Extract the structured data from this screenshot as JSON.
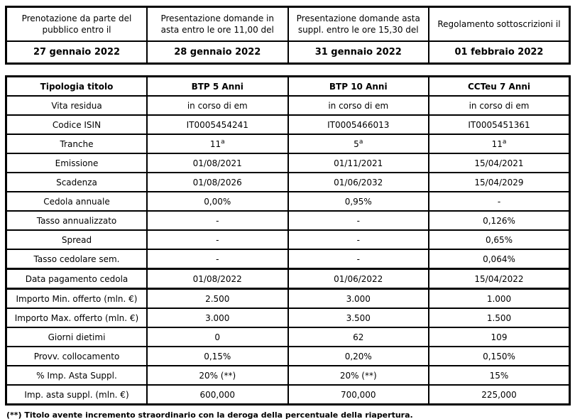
{
  "schedule_table": {
    "headers": [
      "Prenotazione da parte del pubblico entro il",
      "Presentazione domande in asta entro le ore 11,00 del",
      "Presentazione domande asta suppl. entro le ore 15,30 del",
      "Regolamento sottoscrizioni il"
    ],
    "dates": [
      "27 gennaio 2022",
      "28 gennaio 2022",
      "31 gennaio 2022",
      "01 febbraio 2022"
    ]
  },
  "securities_table": {
    "header_label": "Tipologia titolo",
    "columns": [
      "BTP 5 Anni",
      "BTP 10 Anni",
      "CCTeu 7 Anni"
    ],
    "rows": [
      {
        "label": "Vita residua",
        "values": [
          "in corso di em",
          "in corso di em",
          "in corso di em"
        ]
      },
      {
        "label": "Codice ISIN",
        "values": [
          "IT0005454241",
          "IT0005466013",
          "IT0005451361"
        ]
      },
      {
        "label": "Tranche",
        "values": [
          "11ª",
          "5ª",
          "11ª"
        ]
      },
      {
        "label": "Emissione",
        "values": [
          "01/08/2021",
          "01/11/2021",
          "15/04/2021"
        ]
      },
      {
        "label": "Scadenza",
        "values": [
          "01/08/2026",
          "01/06/2032",
          "15/04/2029"
        ]
      },
      {
        "label": "Cedola annuale",
        "values": [
          "0,00%",
          "0,95%",
          "-"
        ]
      },
      {
        "label": "Tasso annualizzato",
        "values": [
          "-",
          "-",
          "0,126%"
        ]
      },
      {
        "label": "Spread",
        "values": [
          "-",
          "-",
          "0,65%"
        ]
      },
      {
        "label": "Tasso cedolare sem.",
        "values": [
          "-",
          "-",
          "0,064%"
        ]
      },
      {
        "label": "Data pagamento cedola",
        "values": [
          "01/08/2022",
          "01/06/2022",
          "15/04/2022"
        ],
        "group_start": true
      },
      {
        "label": "Importo Min. offerto (mln. €)",
        "values": [
          "2.500",
          "3.000",
          "1.000"
        ],
        "group_start": true
      },
      {
        "label": "Importo Max. offerto (mln. €)",
        "values": [
          "3.000",
          "3.500",
          "1.500"
        ]
      },
      {
        "label": "Giorni dietimi",
        "values": [
          "0",
          "62",
          "109"
        ]
      },
      {
        "label": "Provv. collocamento",
        "values": [
          "0,15%",
          "0,20%",
          "0,150%"
        ]
      },
      {
        "label": "% Imp. Asta Suppl.",
        "values": [
          "20% (**)",
          "20% (**)",
          "15%"
        ]
      },
      {
        "label": "Imp. asta suppl. (mln. €)",
        "values": [
          "600,000",
          "700,000",
          "225,000"
        ]
      }
    ]
  },
  "footnote": "(**) Titolo avente incremento straordinario con la deroga della percentuale della riapertura.",
  "colors": {
    "border": "#000000",
    "text": "#000000",
    "background": "#ffffff"
  }
}
